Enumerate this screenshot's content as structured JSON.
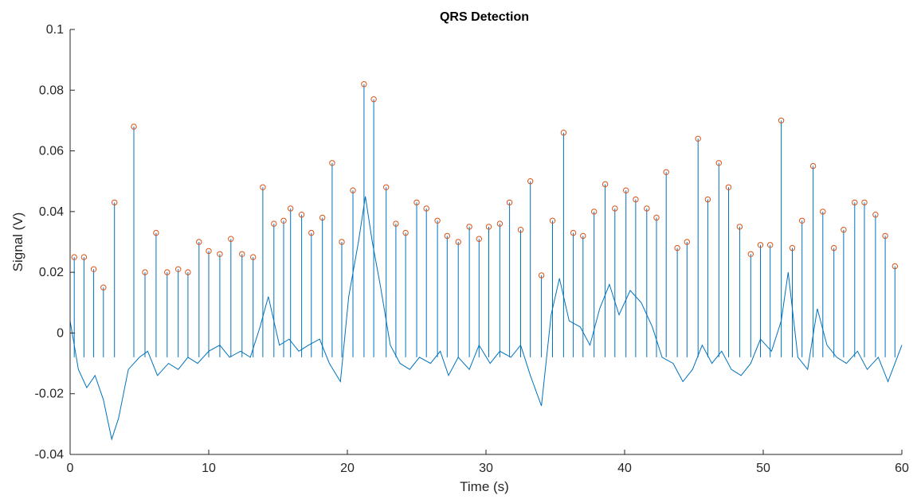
{
  "chart_data": {
    "type": "line",
    "title": "QRS Detection",
    "xlabel": "Time (s)",
    "ylabel": "Signal (V)",
    "xlim": [
      0,
      60
    ],
    "ylim": [
      -0.04,
      0.1
    ],
    "xticks": [
      0,
      10,
      20,
      30,
      40,
      50,
      60
    ],
    "yticks": [
      -0.04,
      -0.02,
      0,
      0.02,
      0.04,
      0.06,
      0.08,
      0.1
    ],
    "xtick_labels": [
      "0",
      "10",
      "20",
      "30",
      "40",
      "50",
      "60"
    ],
    "ytick_labels": [
      "-0.04",
      "-0.02",
      "0",
      "0.02",
      "0.04",
      "0.06",
      "0.08",
      "0.1"
    ],
    "grid": false,
    "colors": {
      "signal": "#0072BD",
      "peaks": "#D95319",
      "axes": "#262626"
    },
    "series": [
      {
        "style": "line",
        "x": [
          0,
          0.6,
          1.2,
          1.8,
          2.4,
          3.0,
          3.5,
          4.2,
          5.0,
          5.6,
          6.3,
          7.1,
          7.8,
          8.5,
          9.2,
          10.0,
          10.8,
          11.5,
          12.3,
          13.0,
          13.7,
          14.3,
          15.1,
          15.8,
          16.5,
          17.2,
          18.0,
          18.7,
          19.5,
          20.1,
          20.8,
          21.3,
          21.8,
          22.4,
          23.1,
          23.8,
          24.5,
          25.2,
          26.0,
          26.7,
          27.3,
          28.0,
          28.8,
          29.5,
          30.3,
          31.0,
          31.8,
          32.5,
          33.2,
          34.0,
          34.7,
          35.3,
          36.0,
          36.8,
          37.5,
          38.2,
          38.9,
          39.6,
          40.4,
          41.2,
          42.0,
          42.7,
          43.5,
          44.2,
          44.9,
          45.6,
          46.3,
          47.0,
          47.7,
          48.4,
          49.1,
          49.8,
          50.6,
          51.3,
          51.8,
          52.5,
          53.2,
          53.9,
          54.6,
          55.3,
          56.0,
          56.8,
          57.5,
          58.3,
          59.0,
          59.5,
          60.0
        ],
        "y": [
          0.004,
          -0.012,
          -0.018,
          -0.014,
          -0.022,
          -0.035,
          -0.028,
          -0.012,
          -0.008,
          -0.006,
          -0.014,
          -0.01,
          -0.012,
          -0.008,
          -0.01,
          -0.006,
          -0.004,
          -0.008,
          -0.006,
          -0.008,
          0.002,
          0.012,
          -0.004,
          -0.002,
          -0.006,
          -0.004,
          -0.002,
          -0.01,
          -0.016,
          0.012,
          0.03,
          0.045,
          0.03,
          0.015,
          -0.004,
          -0.01,
          -0.012,
          -0.008,
          -0.01,
          -0.006,
          -0.014,
          -0.008,
          -0.012,
          -0.004,
          -0.01,
          -0.006,
          -0.008,
          -0.004,
          -0.014,
          -0.024,
          0.006,
          0.018,
          0.004,
          0.002,
          -0.004,
          0.008,
          0.016,
          0.006,
          0.014,
          0.01,
          0.002,
          -0.008,
          -0.01,
          -0.016,
          -0.012,
          -0.004,
          -0.01,
          -0.006,
          -0.012,
          -0.014,
          -0.01,
          -0.002,
          -0.006,
          0.004,
          0.02,
          -0.008,
          -0.012,
          0.008,
          -0.004,
          -0.008,
          -0.01,
          -0.006,
          -0.012,
          -0.008,
          -0.016,
          -0.01,
          -0.004
        ]
      },
      {
        "style": "markers",
        "x": [
          0.3,
          1.0,
          1.7,
          2.4,
          3.2,
          4.6,
          5.4,
          6.2,
          7.0,
          7.8,
          8.5,
          9.3,
          10.0,
          10.8,
          11.6,
          12.4,
          13.2,
          13.9,
          14.7,
          15.4,
          15.9,
          16.7,
          17.4,
          18.2,
          18.9,
          19.6,
          20.4,
          21.2,
          21.9,
          22.8,
          23.5,
          24.2,
          25.0,
          25.7,
          26.5,
          27.2,
          28.0,
          28.8,
          29.5,
          30.2,
          31.0,
          31.7,
          32.5,
          33.2,
          34.0,
          34.8,
          35.6,
          36.3,
          37.0,
          37.8,
          38.6,
          39.3,
          40.1,
          40.8,
          41.6,
          42.3,
          43.0,
          43.8,
          44.5,
          45.3,
          46.0,
          46.8,
          47.5,
          48.3,
          49.1,
          49.8,
          50.5,
          51.3,
          52.1,
          52.8,
          53.6,
          54.3,
          55.1,
          55.8,
          56.6,
          57.3,
          58.1,
          58.8,
          59.5
        ],
        "y": [
          0.025,
          0.025,
          0.021,
          0.015,
          0.043,
          0.068,
          0.02,
          0.033,
          0.02,
          0.021,
          0.02,
          0.03,
          0.027,
          0.026,
          0.031,
          0.026,
          0.025,
          0.048,
          0.036,
          0.037,
          0.041,
          0.039,
          0.033,
          0.038,
          0.056,
          0.03,
          0.047,
          0.082,
          0.077,
          0.048,
          0.036,
          0.033,
          0.043,
          0.041,
          0.037,
          0.032,
          0.03,
          0.035,
          0.031,
          0.035,
          0.036,
          0.043,
          0.034,
          0.05,
          0.019,
          0.037,
          0.066,
          0.033,
          0.032,
          0.04,
          0.049,
          0.041,
          0.047,
          0.044,
          0.041,
          0.038,
          0.053,
          0.028,
          0.03,
          0.064,
          0.044,
          0.056,
          0.048,
          0.035,
          0.026,
          0.029,
          0.029,
          0.07,
          0.028,
          0.037,
          0.055,
          0.04,
          0.028,
          0.034,
          0.043,
          0.043,
          0.039,
          0.032,
          0.022
        ]
      }
    ]
  }
}
